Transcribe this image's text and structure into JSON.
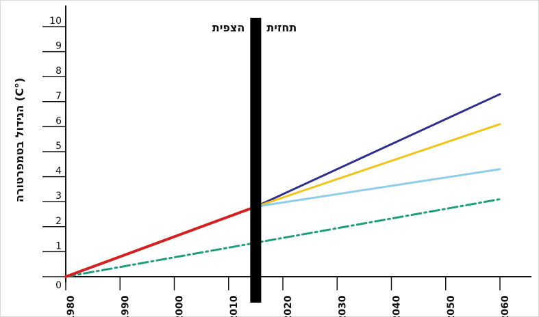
{
  "chart_data": {
    "type": "line",
    "ylabel": "הגידול בטמפרטורה (C°)",
    "xlim": [
      1980,
      2060
    ],
    "ylim": [
      0,
      10
    ],
    "x_ticks": [
      1980,
      1990,
      2000,
      2010,
      2020,
      2030,
      2040,
      2050,
      2060
    ],
    "y_ticks": [
      0,
      1,
      2,
      3,
      4,
      5,
      6,
      7,
      8,
      9,
      10
    ],
    "divider_year": 2015,
    "region_labels": {
      "left": "הצפית",
      "right": "תחזית"
    },
    "grid": false,
    "series": [
      {
        "color": "#2e2e8f",
        "style": "solid",
        "x": [
          1980,
          2015,
          2060
        ],
        "y": [
          0,
          2.8,
          7.3
        ]
      },
      {
        "color": "#f2c417",
        "style": "solid",
        "x": [
          2015,
          2060
        ],
        "y": [
          2.8,
          6.1
        ]
      },
      {
        "color": "#8fcdea",
        "style": "solid",
        "x": [
          2015,
          2060
        ],
        "y": [
          2.8,
          4.3
        ]
      },
      {
        "color": "#1f9e7a",
        "style": "dashdot",
        "x": [
          1980,
          2060
        ],
        "y": [
          0,
          3.1
        ]
      },
      {
        "color": "#d42020",
        "style": "solid",
        "x": [
          1980,
          2015
        ],
        "y": [
          0,
          2.8
        ]
      }
    ]
  }
}
